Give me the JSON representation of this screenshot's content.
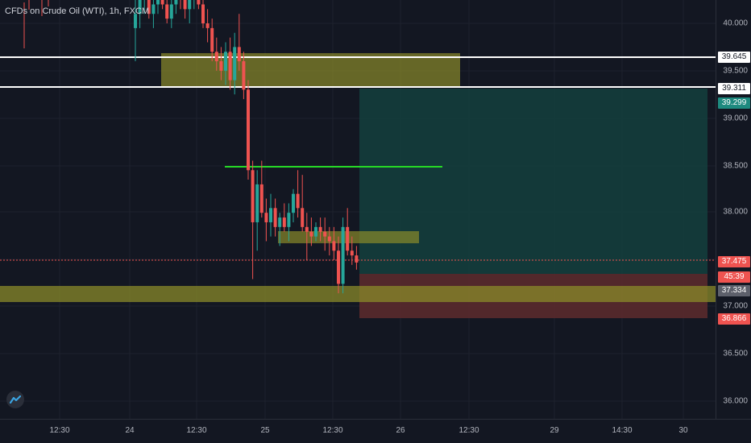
{
  "symbol": {
    "title": "CFDs on Crude Oil (WTI), 1h, FXCM"
  },
  "colors": {
    "bg": "#131722",
    "grid": "#1e222d",
    "up": "#26a69a",
    "down": "#ef5350",
    "zone": "#8a8a2a",
    "target_zone": "#14403d",
    "stop_zone": "#5a2a2c",
    "support_line": "#26d926",
    "level_line": "#ffffff"
  },
  "price_axis": {
    "ticks": [
      "40.000",
      "39.500",
      "39.000",
      "38.500",
      "38.000",
      "37.000",
      "36.500",
      "36.000"
    ],
    "tags": [
      {
        "label": "39.645",
        "bg": "#ffffff",
        "fg": "#131722"
      },
      {
        "label": "39.311",
        "bg": "#ffffff",
        "fg": "#131722"
      },
      {
        "label": "39.299",
        "bg": "#1e8a7f",
        "fg": "#ffffff"
      },
      {
        "label": "37.475",
        "bg": "#ef5350",
        "fg": "#ffffff"
      },
      {
        "label": "45:39",
        "bg": "#ef5350",
        "fg": "#ffffff"
      },
      {
        "label": "37.334",
        "bg": "#5d606b",
        "fg": "#ffffff"
      },
      {
        "label": "36.866",
        "bg": "#ef5350",
        "fg": "#ffffff"
      }
    ]
  },
  "time_axis": {
    "ticks": [
      "12:30",
      "24",
      "12:30",
      "25",
      "12:30",
      "26",
      "12:30",
      "29",
      "14:30",
      "30"
    ]
  },
  "logo_icon": "tradingview-logo-icon"
}
